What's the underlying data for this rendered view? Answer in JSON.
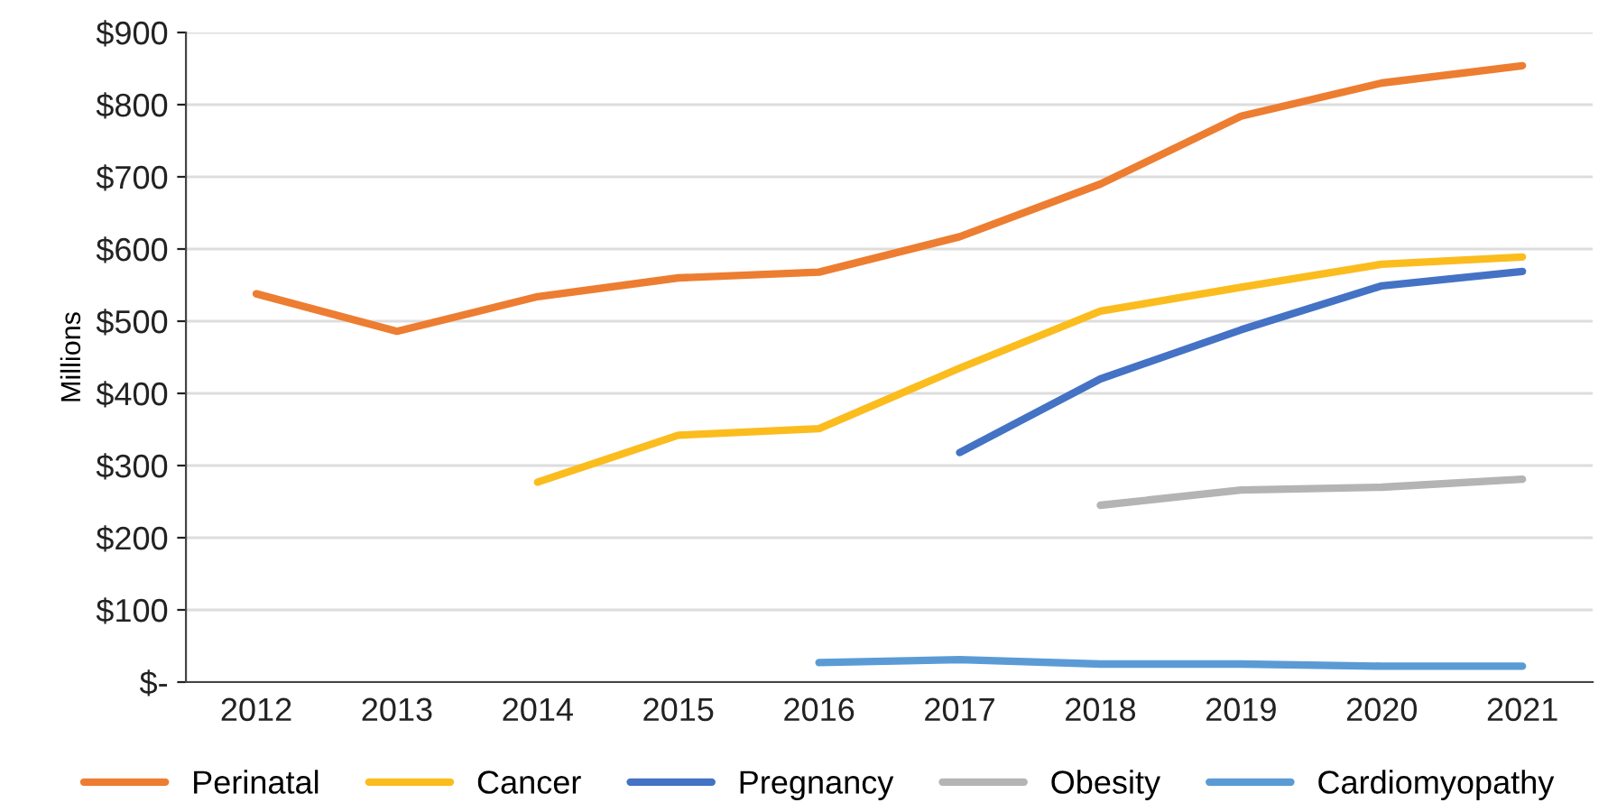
{
  "chart_data": {
    "type": "line",
    "ylabel": "Millions",
    "categories": [
      "2012",
      "2013",
      "2014",
      "2015",
      "2016",
      "2017",
      "2018",
      "2019",
      "2020",
      "2021"
    ],
    "series": [
      {
        "name": "Perinatal",
        "color": "#ed7d31",
        "values": [
          538,
          486,
          534,
          560,
          568,
          617,
          690,
          784,
          830,
          854
        ]
      },
      {
        "name": "Cancer",
        "color": "#fbbc1e",
        "values": [
          null,
          null,
          277,
          342,
          351,
          435,
          514,
          547,
          579,
          589
        ]
      },
      {
        "name": "Pregnancy",
        "color": "#4472c4",
        "values": [
          null,
          null,
          null,
          null,
          null,
          318,
          420,
          488,
          549,
          569
        ]
      },
      {
        "name": "Obesity",
        "color": "#b4b4b4",
        "values": [
          null,
          null,
          null,
          null,
          null,
          null,
          245,
          266,
          270,
          281
        ]
      },
      {
        "name": "Cardiomyopathy",
        "color": "#5b9bd5",
        "values": [
          null,
          null,
          null,
          null,
          27,
          31,
          25,
          25,
          22,
          22
        ]
      }
    ],
    "ylim": [
      0,
      900
    ],
    "yticks": [
      {
        "value": 0,
        "label": "$-"
      },
      {
        "value": 100,
        "label": "$100"
      },
      {
        "value": 200,
        "label": "$200"
      },
      {
        "value": 300,
        "label": "$300"
      },
      {
        "value": 400,
        "label": "$400"
      },
      {
        "value": 500,
        "label": "$500"
      },
      {
        "value": 600,
        "label": "$600"
      },
      {
        "value": 700,
        "label": "$700"
      },
      {
        "value": 800,
        "label": "$800"
      },
      {
        "value": 900,
        "label": "$900"
      }
    ],
    "grid": "y",
    "legend": "bottom",
    "marker": "none",
    "line_style": "solid"
  }
}
